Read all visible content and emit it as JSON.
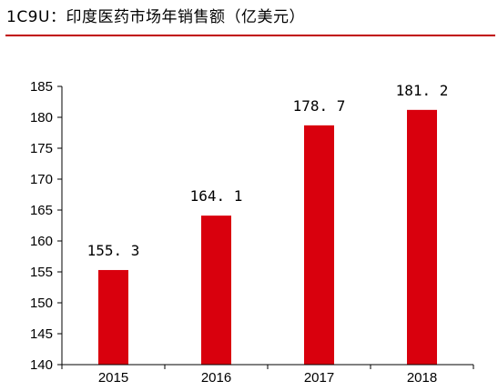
{
  "title": "1C9U：印度医药市场年销售额（亿美元）",
  "colors": {
    "bar": "#d9000d",
    "rule": "#c00000",
    "axis": "#000000"
  },
  "chart_data": {
    "type": "bar",
    "categories": [
      "2015",
      "2016",
      "2017",
      "2018"
    ],
    "values": [
      155.3,
      164.1,
      178.7,
      181.2
    ],
    "data_labels": [
      "155. 3",
      "164. 1",
      "178. 7",
      "181. 2"
    ],
    "ylim": [
      140,
      185
    ],
    "yticks": [
      140,
      145,
      150,
      155,
      160,
      165,
      170,
      175,
      180,
      185
    ],
    "grid": false,
    "legend": "none"
  }
}
